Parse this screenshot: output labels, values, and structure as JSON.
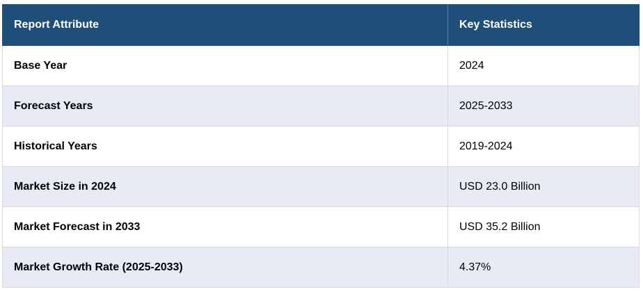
{
  "table": {
    "headers": [
      "Report Attribute",
      "Key Statistics"
    ],
    "rows": [
      {
        "attribute": "Base Year",
        "value": "2024"
      },
      {
        "attribute": "Forecast Years",
        "value": "2025-2033"
      },
      {
        "attribute": "Historical Years",
        "value": "2019-2024"
      },
      {
        "attribute": "Market Size in 2024",
        "value": "USD 23.0 Billion"
      },
      {
        "attribute": "Market Forecast in 2033",
        "value": "USD 35.2 Billion"
      },
      {
        "attribute": "Market Growth Rate (2025-2033)",
        "value": "4.37%"
      }
    ]
  }
}
